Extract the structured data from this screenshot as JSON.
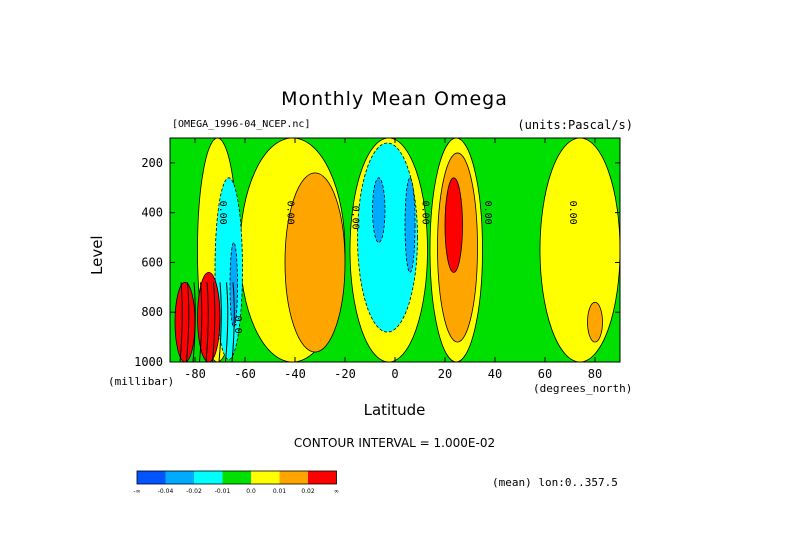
{
  "chart_data": {
    "type": "heatmap",
    "title": "Monthly Mean Omega",
    "dataset": "[OMEGA_1996-04_NCEP.nc]",
    "units": "(units:Pascal/s)",
    "xlabel": "Latitude",
    "xunits": "(degrees_north)",
    "ylabel": "Level",
    "yunits": "(millibar)",
    "xlim": [
      -90,
      90
    ],
    "ylim": [
      1000,
      100
    ],
    "x_ticks": [
      -80,
      -60,
      -40,
      -20,
      0,
      20,
      40,
      60,
      80
    ],
    "y_ticks": [
      200,
      400,
      600,
      800,
      1000
    ],
    "contour_interval": "CONTOUR INTERVAL = 1.000E-02",
    "contour_labels": [
      {
        "text": "0.00",
        "lat": -70,
        "level": 400
      },
      {
        "text": "0.00",
        "lat": -43,
        "level": 400
      },
      {
        "text": "0.00",
        "lat": -17,
        "level": 420
      },
      {
        "text": "0.00",
        "lat": 11,
        "level": 400
      },
      {
        "text": "0.00",
        "lat": 36,
        "level": 400
      },
      {
        "text": "0.00",
        "lat": 70,
        "level": 400
      },
      {
        "text": "0.0",
        "lat": -64,
        "level": 850
      }
    ],
    "regions": [
      {
        "band": "green",
        "lat": [
          -90,
          90
        ],
        "level": [
          100,
          1000
        ]
      },
      {
        "band": "yellow",
        "lat": [
          -79,
          -63
        ],
        "level": [
          100,
          1000
        ]
      },
      {
        "band": "yellow",
        "lat": [
          -62,
          -20
        ],
        "level": [
          100,
          1000
        ]
      },
      {
        "band": "orange",
        "lat": [
          -44,
          -20
        ],
        "level": [
          240,
          960
        ]
      },
      {
        "band": "cyan",
        "lat": [
          -72,
          -61
        ],
        "level": [
          260,
          990
        ]
      },
      {
        "band": "blue",
        "lat": [
          -66,
          -63
        ],
        "level": [
          520,
          860
        ]
      },
      {
        "band": "yellow",
        "lat": [
          -18,
          13
        ],
        "level": [
          100,
          1000
        ]
      },
      {
        "band": "cyan",
        "lat": [
          -15,
          9
        ],
        "level": [
          120,
          880
        ]
      },
      {
        "band": "blue",
        "lat": [
          -9,
          -4
        ],
        "level": [
          260,
          520
        ]
      },
      {
        "band": "blue",
        "lat": [
          4,
          8
        ],
        "level": [
          260,
          640
        ]
      },
      {
        "band": "yellow",
        "lat": [
          14,
          35
        ],
        "level": [
          100,
          1000
        ]
      },
      {
        "band": "orange",
        "lat": [
          17,
          33
        ],
        "level": [
          160,
          920
        ]
      },
      {
        "band": "red",
        "lat": [
          20,
          27
        ],
        "level": [
          260,
          640
        ]
      },
      {
        "band": "yellow",
        "lat": [
          58,
          90
        ],
        "level": [
          100,
          1000
        ]
      },
      {
        "band": "orange",
        "lat": [
          77,
          83
        ],
        "level": [
          760,
          920
        ]
      },
      {
        "band": "red",
        "lat": [
          -88,
          -80
        ],
        "level": [
          680,
          1000
        ]
      },
      {
        "band": "red",
        "lat": [
          -79,
          -70
        ],
        "level": [
          640,
          1000
        ]
      }
    ],
    "colorbar": {
      "colors": [
        "#0055ff",
        "#00aaff",
        "#00ffff",
        "#00e000",
        "#ffff00",
        "#ffa500",
        "#ff0000"
      ],
      "labels": [
        "-∞",
        "-0.04",
        "-0.02",
        "-0.01",
        "0.0",
        "0.01",
        "0.02",
        "∞"
      ]
    },
    "mean_label": "(mean) lon:0..357.5"
  }
}
